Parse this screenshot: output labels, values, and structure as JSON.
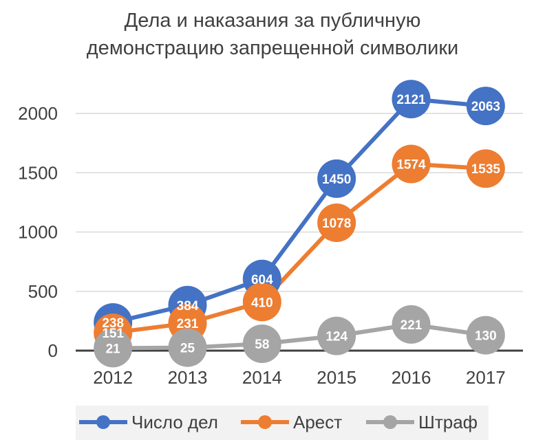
{
  "chart_data": {
    "type": "line",
    "title": [
      "Дела и наказания за публичную",
      "демонстрацию запрещенной символики"
    ],
    "xlabel": "",
    "ylabel": "",
    "categories": [
      "2012",
      "2013",
      "2014",
      "2015",
      "2016",
      "2017"
    ],
    "ylim": [
      0,
      2000
    ],
    "yticks": [
      "0",
      "500",
      "1000",
      "1500",
      "2000"
    ],
    "grid": true,
    "legend_position": "bottom",
    "series": [
      {
        "name": "Число дел",
        "color": "#4472C4",
        "values": [
          238,
          384,
          604,
          1450,
          2121,
          2063
        ],
        "labels": [
          "238",
          "384",
          "604",
          "1450",
          "2121",
          "2063"
        ]
      },
      {
        "name": "Арест",
        "color": "#ED7D31",
        "values": [
          151,
          231,
          410,
          1078,
          1574,
          1535
        ],
        "labels": [
          "151",
          "231",
          "410",
          "1078",
          "1574",
          "1535"
        ]
      },
      {
        "name": "Штраф",
        "color": "#A5A5A5",
        "values": [
          21,
          25,
          58,
          124,
          221,
          130
        ],
        "labels": [
          "21",
          "25",
          "58",
          "124",
          "221",
          "130"
        ]
      }
    ]
  }
}
